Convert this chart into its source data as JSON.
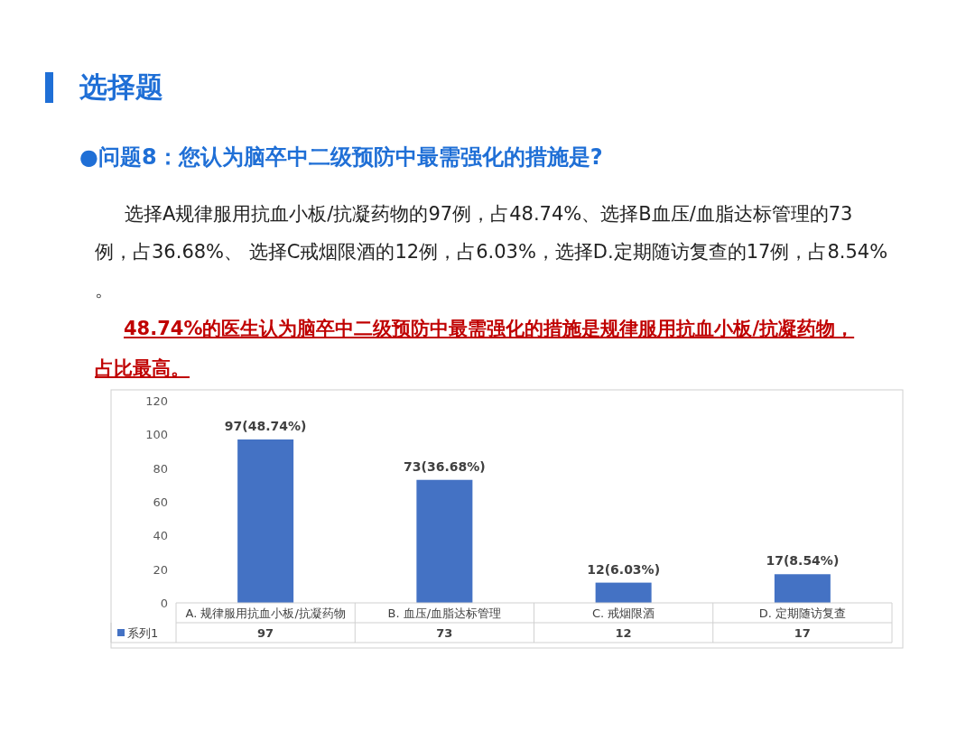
{
  "chart_data": {
    "type": "bar",
    "title": "选择题",
    "subtitle": "●问题8：您认为脑卒中二级预防中最需强化的措施是?",
    "annotations": [
      "选择A规律服用抗血小板/抗凝药物的97例，占48.74%、选择B血压/血脂达标管理的73例，占36.68%、 选择C戒烟限酒的12例，占6.03%，选择D.定期随访复查的17例，占8.54% 。",
      "48.74%的医生认为脑卒中二级预防中最需强化的措施是规律服用抗血小板/抗凝药物，占比最高。",
      {
        "text": "97(48.74%)",
        "x": "A. 规律服用抗血小板/抗凝药物",
        "y": 97
      },
      {
        "text": "73(36.68%)",
        "x": "B. 血压/血脂达标管理",
        "y": 73
      },
      {
        "text": "12(6.03%)",
        "x": "C. 戒烟限酒",
        "y": 12
      },
      {
        "text": "17(8.54%)",
        "x": "D. 定期随访复查",
        "y": 17
      }
    ],
    "categories": [
      "A. 规律服用抗血小板/抗凝药物",
      "B. 血压/血脂达标管理",
      "C. 戒烟限酒",
      "D. 定期随访复查"
    ],
    "series": [
      {
        "name": "系列1",
        "color": "#4472c4",
        "values": [
          97,
          73,
          12,
          17
        ]
      }
    ],
    "ylim": [
      0,
      120
    ],
    "yticks": [
      0,
      20,
      40,
      60,
      80,
      100,
      120
    ],
    "grid": false,
    "legend": "bottom",
    "data_labels": true
  }
}
